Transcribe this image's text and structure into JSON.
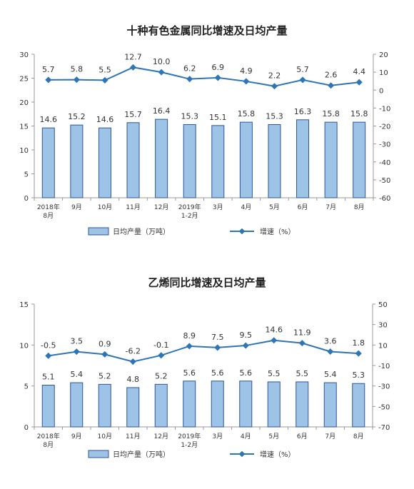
{
  "chart_data": [
    {
      "type": "bar+line",
      "title": "十种有色金属同比增速及日均产量",
      "categories": [
        [
          "2018年",
          "8月"
        ],
        [
          "9月"
        ],
        [
          "10月"
        ],
        [
          "11月"
        ],
        [
          "12月"
        ],
        [
          "2019年",
          "1-2月"
        ],
        [
          "3月"
        ],
        [
          "4月"
        ],
        [
          "5月"
        ],
        [
          "6月"
        ],
        [
          "7月"
        ],
        [
          "8月"
        ]
      ],
      "series": [
        {
          "name": "日均产量（万吨）",
          "kind": "bar",
          "axis": "left",
          "values": [
            14.6,
            15.2,
            14.6,
            15.7,
            16.4,
            15.3,
            15.1,
            15.8,
            15.3,
            16.3,
            15.8,
            15.8
          ]
        },
        {
          "name": "增速（%）",
          "kind": "line",
          "axis": "right",
          "values": [
            5.7,
            5.8,
            5.5,
            12.7,
            10.0,
            6.2,
            6.9,
            4.9,
            2.2,
            5.7,
            2.6,
            4.4
          ]
        }
      ],
      "ylim_left": [
        0,
        30
      ],
      "yticks_left": [
        0,
        5,
        10,
        15,
        20,
        25,
        30
      ],
      "ylim_right": [
        -60,
        20
      ],
      "yticks_right": [
        -60,
        -50,
        -40,
        -30,
        -20,
        -10,
        0,
        10,
        20
      ],
      "bar_labels": [
        "14.6",
        "15.2",
        "14.6",
        "15.7",
        "16.4",
        "15.3",
        "15.1",
        "15.8",
        "15.3",
        "16.3",
        "15.8",
        "15.8"
      ],
      "line_labels": [
        "5.7",
        "5.8",
        "5.5",
        "12.7",
        "10.0",
        "6.2",
        "6.9",
        "4.9",
        "2.2",
        "5.7",
        "2.6",
        "4.4"
      ],
      "grid": false,
      "legend": "bottom"
    },
    {
      "type": "bar+line",
      "title": "乙烯同比增速及日均产量",
      "categories": [
        [
          "2018年",
          "8月"
        ],
        [
          "9月"
        ],
        [
          "10月"
        ],
        [
          "11月"
        ],
        [
          "12月"
        ],
        [
          "2019年",
          "1-2月"
        ],
        [
          "3月"
        ],
        [
          "4月"
        ],
        [
          "5月"
        ],
        [
          "6月"
        ],
        [
          "7月"
        ],
        [
          "8月"
        ]
      ],
      "series": [
        {
          "name": "日均产量（万吨）",
          "kind": "bar",
          "axis": "left",
          "values": [
            5.1,
            5.4,
            5.2,
            4.8,
            5.2,
            5.6,
            5.6,
            5.6,
            5.5,
            5.5,
            5.4,
            5.3
          ]
        },
        {
          "name": "增速（%）",
          "kind": "line",
          "axis": "right",
          "values": [
            -0.5,
            3.5,
            0.9,
            -6.2,
            -0.1,
            8.9,
            7.5,
            9.5,
            14.6,
            11.9,
            3.6,
            1.8
          ]
        }
      ],
      "ylim_left": [
        0,
        15
      ],
      "yticks_left": [
        0,
        5,
        10,
        15
      ],
      "ylim_right": [
        -70,
        50
      ],
      "yticks_right": [
        -70,
        -50,
        -30,
        -10,
        10,
        30,
        50
      ],
      "bar_labels": [
        "5.1",
        "5.4",
        "5.2",
        "4.8",
        "5.2",
        "5.6",
        "5.6",
        "5.6",
        "5.5",
        "5.5",
        "5.4",
        "5.3"
      ],
      "line_labels": [
        "-0.5",
        "3.5",
        "0.9",
        "-6.2",
        "-0.1",
        "8.9",
        "7.5",
        "9.5",
        "14.6",
        "11.9",
        "3.6",
        "1.8"
      ],
      "grid": false,
      "legend": "bottom"
    }
  ],
  "colors": {
    "bar_fill": "#9dc3e6",
    "bar_stroke": "#2f5597",
    "line": "#2e75b6",
    "axis": "#999999",
    "text": "#333333"
  }
}
